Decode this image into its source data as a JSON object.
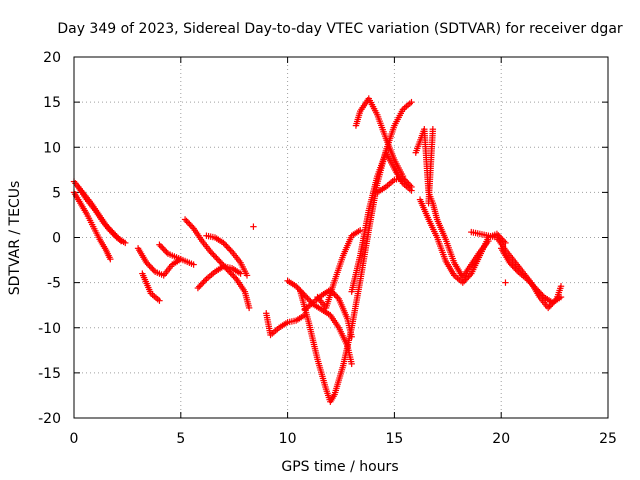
{
  "chart_data": {
    "type": "scatter",
    "title": "Day 349 of 2023, Sidereal Day-to-day VTEC variation (SDTVAR) for receiver dgar",
    "xlabel": "GPS time / hours",
    "ylabel": "SDTVAR / TECUs",
    "xlim": [
      0,
      25
    ],
    "ylim": [
      -20,
      20
    ],
    "xticks": [
      0,
      5,
      10,
      15,
      20,
      25
    ],
    "yticks": [
      -20,
      -15,
      -10,
      -5,
      0,
      5,
      10,
      15,
      20
    ],
    "xtick_labels": [
      "0",
      "5",
      "10",
      "15",
      "20",
      "25"
    ],
    "ytick_labels": [
      "-20",
      "-15",
      "-10",
      "-5",
      "0",
      "5",
      "10",
      "15",
      "20"
    ],
    "grid": true,
    "marker": "+",
    "color": "#ff0000",
    "series": [
      {
        "name": "trace-1",
        "points": [
          [
            0.0,
            6.2
          ],
          [
            0.4,
            5.0
          ],
          [
            0.8,
            3.8
          ],
          [
            1.2,
            2.4
          ],
          [
            1.6,
            1.0
          ],
          [
            2.0,
            0.0
          ],
          [
            2.4,
            -0.6
          ]
        ]
      },
      {
        "name": "trace-2",
        "points": [
          [
            0.0,
            5.0
          ],
          [
            0.3,
            3.8
          ],
          [
            0.6,
            2.6
          ],
          [
            0.9,
            1.2
          ],
          [
            1.2,
            -0.2
          ],
          [
            1.5,
            -1.4
          ],
          [
            1.7,
            -2.4
          ]
        ]
      },
      {
        "name": "trace-3",
        "points": [
          [
            0.2,
            5.6
          ],
          [
            0.6,
            4.2
          ],
          [
            1.0,
            3.0
          ],
          [
            1.4,
            1.6
          ],
          [
            1.8,
            0.6
          ],
          [
            2.2,
            -0.4
          ]
        ]
      },
      {
        "name": "trace-4",
        "points": [
          [
            3.0,
            -1.2
          ],
          [
            3.4,
            -2.8
          ],
          [
            3.8,
            -3.8
          ],
          [
            4.2,
            -4.2
          ],
          [
            4.6,
            -3.0
          ],
          [
            5.0,
            -2.4
          ]
        ]
      },
      {
        "name": "trace-5",
        "points": [
          [
            3.2,
            -4.0
          ],
          [
            3.6,
            -6.2
          ],
          [
            4.0,
            -7.0
          ]
        ]
      },
      {
        "name": "trace-6",
        "points": [
          [
            4.0,
            -0.8
          ],
          [
            4.4,
            -1.8
          ],
          [
            4.8,
            -2.2
          ],
          [
            5.2,
            -2.6
          ],
          [
            5.6,
            -3.0
          ]
        ]
      },
      {
        "name": "trace-7",
        "points": [
          [
            5.2,
            2.0
          ],
          [
            5.6,
            1.0
          ],
          [
            6.0,
            -0.4
          ],
          [
            6.4,
            -1.6
          ],
          [
            6.8,
            -2.6
          ],
          [
            7.2,
            -3.6
          ],
          [
            7.6,
            -4.6
          ],
          [
            8.0,
            -6.0
          ],
          [
            8.2,
            -7.8
          ]
        ]
      },
      {
        "name": "trace-8",
        "points": [
          [
            6.2,
            0.2
          ],
          [
            6.6,
            0.0
          ],
          [
            7.0,
            -0.6
          ],
          [
            7.4,
            -1.6
          ],
          [
            7.8,
            -2.8
          ],
          [
            8.1,
            -4.2
          ]
        ]
      },
      {
        "name": "trace-9",
        "points": [
          [
            5.8,
            -5.6
          ],
          [
            6.2,
            -4.6
          ],
          [
            6.6,
            -3.8
          ],
          [
            7.0,
            -3.2
          ],
          [
            7.4,
            -3.4
          ],
          [
            7.8,
            -4.0
          ]
        ]
      },
      {
        "name": "trace-10",
        "points": [
          [
            8.4,
            1.2
          ]
        ]
      },
      {
        "name": "trace-11",
        "points": [
          [
            9.0,
            -8.4
          ],
          [
            9.2,
            -10.8
          ],
          [
            9.6,
            -10.0
          ],
          [
            10.0,
            -9.4
          ],
          [
            10.4,
            -9.2
          ],
          [
            10.8,
            -8.6
          ]
        ]
      },
      {
        "name": "trace-12",
        "points": [
          [
            10.6,
            -6.0
          ],
          [
            11.0,
            -9.5
          ],
          [
            11.4,
            -13.5
          ],
          [
            11.8,
            -16.8
          ],
          [
            12.0,
            -18.2
          ],
          [
            12.2,
            -17.4
          ],
          [
            12.6,
            -14.2
          ],
          [
            13.0,
            -10.0
          ],
          [
            13.4,
            -4.8
          ],
          [
            13.8,
            0.8
          ],
          [
            14.2,
            6.0
          ],
          [
            14.6,
            9.6
          ],
          [
            15.0,
            12.4
          ],
          [
            15.4,
            14.2
          ],
          [
            15.8,
            15.0
          ]
        ]
      },
      {
        "name": "trace-13",
        "points": [
          [
            10.8,
            -8.0
          ],
          [
            11.2,
            -7.2
          ],
          [
            11.6,
            -6.4
          ],
          [
            12.0,
            -5.8
          ],
          [
            12.4,
            -6.8
          ],
          [
            12.8,
            -9.0
          ],
          [
            13.0,
            -11.0
          ]
        ]
      },
      {
        "name": "trace-14",
        "points": [
          [
            10.0,
            -4.8
          ],
          [
            10.4,
            -5.4
          ],
          [
            10.8,
            -6.4
          ],
          [
            11.2,
            -7.4
          ],
          [
            11.6,
            -8.0
          ],
          [
            12.0,
            -8.6
          ],
          [
            12.4,
            -10.0
          ],
          [
            12.8,
            -12.0
          ],
          [
            13.0,
            -14.0
          ]
        ]
      },
      {
        "name": "trace-15",
        "points": [
          [
            11.4,
            -6.6
          ],
          [
            11.8,
            -7.8
          ],
          [
            12.2,
            -4.8
          ],
          [
            12.6,
            -2.0
          ],
          [
            13.0,
            0.2
          ],
          [
            13.4,
            0.8
          ]
        ]
      },
      {
        "name": "trace-16",
        "points": [
          [
            13.0,
            -6.0
          ],
          [
            13.4,
            -2.0
          ],
          [
            13.8,
            3.0
          ],
          [
            14.2,
            6.8
          ],
          [
            14.6,
            9.4
          ],
          [
            15.0,
            7.6
          ],
          [
            15.4,
            6.0
          ],
          [
            15.8,
            5.2
          ]
        ]
      },
      {
        "name": "trace-17",
        "points": [
          [
            13.2,
            12.4
          ],
          [
            13.4,
            14.0
          ],
          [
            13.8,
            15.4
          ],
          [
            14.2,
            13.6
          ],
          [
            14.6,
            11.0
          ],
          [
            15.0,
            8.6
          ],
          [
            15.4,
            6.8
          ]
        ]
      },
      {
        "name": "trace-18",
        "points": [
          [
            14.2,
            5.0
          ],
          [
            14.6,
            5.6
          ],
          [
            15.0,
            6.4
          ],
          [
            15.4,
            6.6
          ],
          [
            15.8,
            5.6
          ]
        ]
      },
      {
        "name": "trace-19",
        "points": [
          [
            16.0,
            9.4
          ],
          [
            16.4,
            12.0
          ],
          [
            16.6,
            5.0
          ],
          [
            16.8,
            3.8
          ],
          [
            17.0,
            2.0
          ],
          [
            17.4,
            -0.2
          ],
          [
            17.8,
            -2.8
          ],
          [
            18.2,
            -4.4
          ],
          [
            18.6,
            -3.0
          ],
          [
            19.0,
            -1.6
          ],
          [
            19.4,
            -0.4
          ]
        ]
      },
      {
        "name": "trace-20",
        "points": [
          [
            16.2,
            4.2
          ],
          [
            16.6,
            2.0
          ],
          [
            17.0,
            0.0
          ],
          [
            17.4,
            -2.6
          ],
          [
            17.8,
            -4.2
          ],
          [
            18.2,
            -5.0
          ],
          [
            18.6,
            -4.0
          ],
          [
            19.0,
            -2.0
          ],
          [
            19.4,
            0.0
          ],
          [
            19.8,
            0.4
          ],
          [
            20.2,
            -0.6
          ]
        ]
      },
      {
        "name": "trace-21",
        "points": [
          [
            18.6,
            0.6
          ],
          [
            19.0,
            0.4
          ],
          [
            19.4,
            0.2
          ],
          [
            19.8,
            0.0
          ],
          [
            20.2,
            -1.4
          ],
          [
            20.6,
            -2.6
          ],
          [
            21.0,
            -3.8
          ],
          [
            21.4,
            -5.0
          ],
          [
            21.8,
            -6.6
          ],
          [
            22.2,
            -7.8
          ],
          [
            22.6,
            -6.8
          ],
          [
            22.8,
            -5.4
          ]
        ]
      },
      {
        "name": "trace-22",
        "points": [
          [
            20.0,
            -1.2
          ],
          [
            20.4,
            -2.8
          ],
          [
            20.8,
            -3.8
          ],
          [
            21.2,
            -4.6
          ],
          [
            21.6,
            -5.6
          ],
          [
            22.0,
            -6.6
          ],
          [
            22.4,
            -7.2
          ],
          [
            22.8,
            -6.6
          ]
        ]
      },
      {
        "name": "trace-23",
        "points": [
          [
            20.2,
            -5.0
          ]
        ]
      },
      {
        "name": "trace-24",
        "points": [
          [
            16.6,
            3.8
          ],
          [
            16.8,
            12.0
          ]
        ]
      }
    ]
  }
}
